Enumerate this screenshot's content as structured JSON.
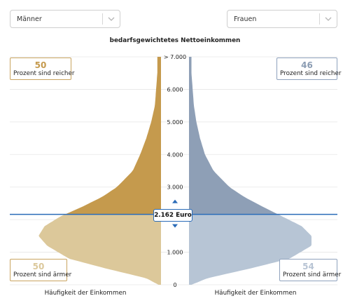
{
  "controls": {
    "left_select": "Männer",
    "right_select": "Frauen"
  },
  "colors": {
    "men_rich": "#c59a4d",
    "men_poor": "#dcc89a",
    "women_rich": "#8e9fb6",
    "women_poor": "#b7c5d5",
    "median_line": "#2a6bb8",
    "grid": "#e6e6e6"
  },
  "stats": {
    "men_richer": "50",
    "men_poorer": "50",
    "women_richer": "46",
    "women_poorer": "54",
    "richer_label": "Prozent sind reicher",
    "poorer_label": "Prozent sind ärmer"
  },
  "median_label": "2.162 Euro",
  "chart_data": {
    "type": "area",
    "title": "bedarfsgewichtetes Nettoeinkommen",
    "xlabel": "Häufigkeit der Einkommen",
    "y_ticks": [
      "0",
      "1.000",
      "2.000",
      "3.000",
      "4.000",
      "5.000",
      "6.000",
      "> 7.000"
    ],
    "ylim": [
      0,
      7000
    ],
    "median": 2162,
    "grid": true,
    "series": [
      {
        "name": "Männer",
        "income": [
          0,
          200,
          500,
          800,
          1200,
          1500,
          1800,
          2100,
          2400,
          2700,
          3000,
          3500,
          4000,
          4500,
          5000,
          5500,
          6000,
          6500,
          7000
        ],
        "density": [
          0.02,
          0.12,
          0.45,
          0.75,
          0.93,
          1.0,
          0.95,
          0.82,
          0.64,
          0.48,
          0.36,
          0.23,
          0.17,
          0.12,
          0.08,
          0.05,
          0.04,
          0.03,
          0.03
        ]
      },
      {
        "name": "Frauen",
        "income": [
          0,
          200,
          500,
          800,
          1200,
          1500,
          1800,
          2100,
          2400,
          2700,
          3000,
          3500,
          4000,
          4500,
          5000,
          5500,
          6000,
          6500,
          7000
        ],
        "density": [
          0.02,
          0.15,
          0.5,
          0.82,
          1.0,
          1.0,
          0.92,
          0.76,
          0.6,
          0.45,
          0.33,
          0.2,
          0.13,
          0.09,
          0.06,
          0.04,
          0.03,
          0.02,
          0.02
        ]
      }
    ]
  }
}
